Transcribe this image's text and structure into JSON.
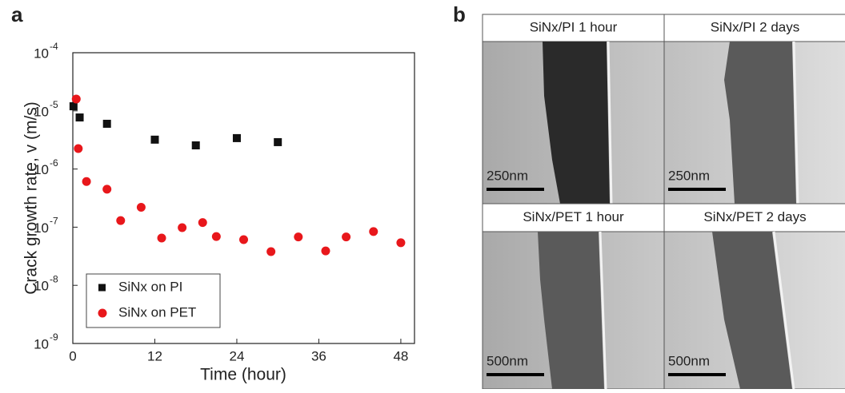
{
  "chart_data": {
    "type": "scatter",
    "panel_label": "a",
    "x_label": "Time (hour)",
    "y_label": "Crack growth rate, v (m/s)",
    "xlim": [
      0,
      50
    ],
    "xticks": [
      0,
      12,
      24,
      36,
      48
    ],
    "ylim": [
      1e-09,
      0.0001
    ],
    "log_y": true,
    "yticks": [
      {
        "value": 1e-09,
        "label": "10",
        "power": "-9"
      },
      {
        "value": 1e-08,
        "label": "10",
        "power": "-8"
      },
      {
        "value": 1e-07,
        "label": "10",
        "power": "-7"
      },
      {
        "value": 1e-06,
        "label": "10",
        "power": "-6"
      },
      {
        "value": 1e-05,
        "label": "10",
        "power": "-5"
      },
      {
        "value": 0.0001,
        "label": "10",
        "power": "-4"
      }
    ],
    "legend": "lower left",
    "series": [
      {
        "name": "SiNx on PI",
        "color": "#111111",
        "marker": "square",
        "x": [
          0.1,
          1,
          5,
          12,
          18,
          24,
          30
        ],
        "values": [
          1.2e-05,
          7.7e-06,
          6e-06,
          3.2e-06,
          2.55e-06,
          3.4e-06,
          2.9e-06
        ]
      },
      {
        "name": "SiNx on PET",
        "color": "#e8171b",
        "marker": "circle",
        "x": [
          0.5,
          0.8,
          2,
          5,
          7,
          10,
          13,
          16,
          19,
          21,
          25,
          29,
          33,
          37,
          40,
          44,
          48
        ],
        "values": [
          1.6e-05,
          2.25e-06,
          6.1e-07,
          4.5e-07,
          1.3e-07,
          2.2e-07,
          6.5e-08,
          9.8e-08,
          1.2e-07,
          6.9e-08,
          6.1e-08,
          3.8e-08,
          6.8e-08,
          3.9e-08,
          6.8e-08,
          8.4e-08,
          5.4e-08
        ]
      }
    ]
  },
  "panel_b": {
    "label": "b",
    "images": [
      {
        "title": "SiNx/PI 1 hour",
        "scale": "250nm"
      },
      {
        "title": "SiNx/PI 2 days",
        "scale": "250nm"
      },
      {
        "title": "SiNx/PET 1 hour",
        "scale": "500nm"
      },
      {
        "title": "SiNx/PET 2 days",
        "scale": "500nm"
      }
    ]
  }
}
